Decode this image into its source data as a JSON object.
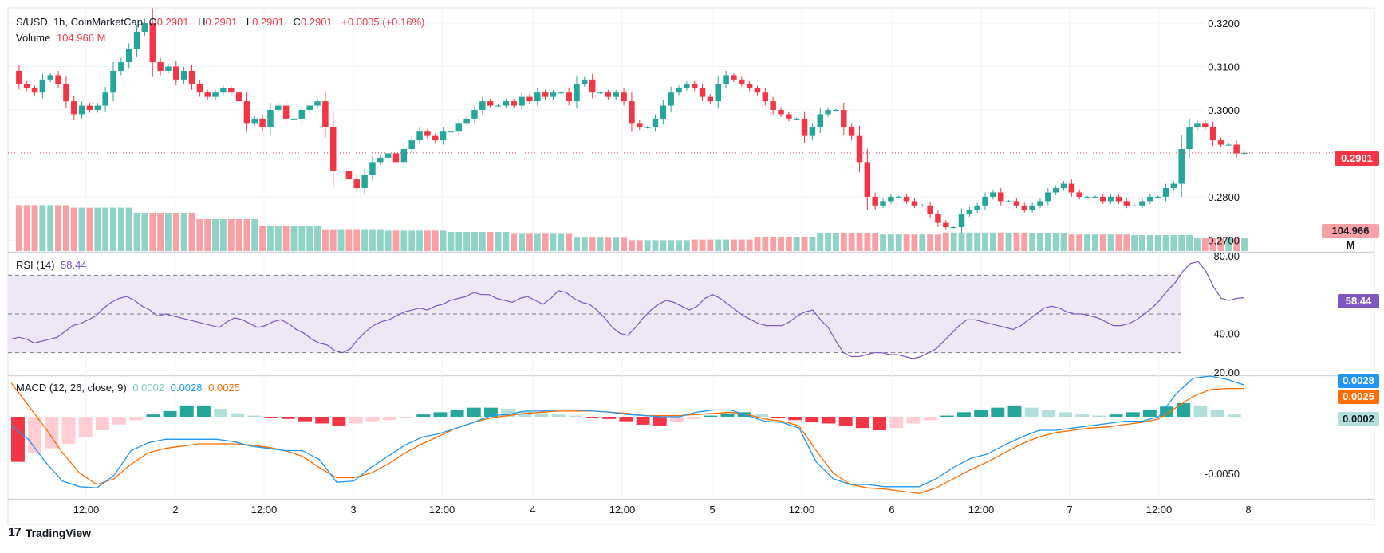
{
  "header": {
    "symbol": "S/USD, 1h, CoinMarketCap",
    "o_label": "O",
    "o_value": "0.2901",
    "h_label": "H",
    "h_value": "0.2901",
    "l_label": "L",
    "l_value": "0.2901",
    "c_label": "C",
    "c_value": "0.2901",
    "change": "+0.0005 (+0.16%)",
    "volume_label": "Volume",
    "volume_value": "104.966 M"
  },
  "rsi_legend": {
    "label": "RSI (14)",
    "value": "58.44"
  },
  "macd_legend": {
    "label": "MACD (12, 26, close, 9)",
    "hist": "0.0002",
    "macd": "0.0028",
    "signal": "0.0025"
  },
  "badges": {
    "price": "0.2901",
    "volume": "104.966 M",
    "rsi": "58.44",
    "macd": "0.0028",
    "signal": "0.0025",
    "hist": "0.0002"
  },
  "branding": {
    "logo_text": "TradingView",
    "logo_mark": "17"
  },
  "colors": {
    "up": "#26a69a",
    "down": "#f23645",
    "up_vol": "#8fd3c7",
    "down_vol": "#f7a1a6",
    "rsi_line": "#7e57c2",
    "rsi_band": "#ede7f6",
    "macd_line": "#2196f3",
    "signal_line": "#ff6d00",
    "hist_pos_strong": "#26a69a",
    "hist_pos_weak": "#b2dfdb",
    "hist_neg_strong": "#f23645",
    "hist_neg_weak": "#ffcdd2"
  },
  "chart_data": [
    {
      "type": "candlestick",
      "title": "S/USD, 1h, CoinMarketCap",
      "x_tick_labels": [
        "12:00",
        "2",
        "12:00",
        "3",
        "12:00",
        "4",
        "12:00",
        "5",
        "12:00",
        "6",
        "12:00",
        "7",
        "12:00",
        "8"
      ],
      "y_tick_labels": [
        "0.3200",
        "0.3100",
        "0.3000",
        "0.2800",
        "0.2700"
      ],
      "ylim": [
        0.2675,
        0.3235
      ],
      "close_path": [
        0.309,
        0.306,
        0.305,
        0.304,
        0.307,
        0.308,
        0.306,
        0.302,
        0.299,
        0.301,
        0.3,
        0.301,
        0.304,
        0.309,
        0.311,
        0.314,
        0.318,
        0.32,
        0.311,
        0.309,
        0.31,
        0.307,
        0.309,
        0.306,
        0.304,
        0.303,
        0.304,
        0.305,
        0.304,
        0.302,
        0.297,
        0.298,
        0.296,
        0.3,
        0.301,
        0.298,
        0.298,
        0.3,
        0.301,
        0.302,
        0.296,
        0.286,
        0.286,
        0.284,
        0.282,
        0.285,
        0.288,
        0.289,
        0.29,
        0.288,
        0.291,
        0.293,
        0.295,
        0.294,
        0.293,
        0.295,
        0.295,
        0.297,
        0.298,
        0.3,
        0.302,
        0.301,
        0.301,
        0.302,
        0.301,
        0.303,
        0.302,
        0.304,
        0.303,
        0.304,
        0.304,
        0.302,
        0.306,
        0.307,
        0.304,
        0.304,
        0.303,
        0.304,
        0.302,
        0.297,
        0.296,
        0.296,
        0.298,
        0.301,
        0.304,
        0.305,
        0.306,
        0.305,
        0.303,
        0.302,
        0.306,
        0.308,
        0.307,
        0.306,
        0.305,
        0.304,
        0.302,
        0.3,
        0.299,
        0.298,
        0.298,
        0.294,
        0.296,
        0.299,
        0.3,
        0.3,
        0.296,
        0.294,
        0.288,
        0.28,
        0.278,
        0.279,
        0.28,
        0.28,
        0.279,
        0.278,
        0.278,
        0.276,
        0.274,
        0.273,
        0.273,
        0.276,
        0.277,
        0.278,
        0.28,
        0.281,
        0.279,
        0.279,
        0.278,
        0.277,
        0.278,
        0.279,
        0.281,
        0.282,
        0.283,
        0.281,
        0.28,
        0.28,
        0.28,
        0.279,
        0.28,
        0.279,
        0.278,
        0.278,
        0.279,
        0.28,
        0.28,
        0.282,
        0.283,
        0.291,
        0.296,
        0.297,
        0.296,
        0.293,
        0.292,
        0.292,
        0.29,
        0.2901
      ]
    },
    {
      "type": "bar",
      "title": "Volume",
      "value_label": "104.966 M",
      "volume_profile": [
        0.72,
        0.68,
        0.6,
        0.5,
        0.4,
        0.33,
        0.32,
        0.3,
        0.27,
        0.21,
        0.17,
        0.18,
        0.22,
        0.28,
        0.26,
        0.29,
        0.28,
        0.26,
        0.25,
        0.2
      ]
    },
    {
      "type": "line",
      "title": "RSI (14)",
      "value_label": "58.44",
      "y_tick_labels": [
        "80.00",
        "40.00",
        "20.00"
      ],
      "ylim": [
        20,
        80
      ],
      "bands": [
        70,
        50,
        30
      ],
      "values": [
        37,
        38,
        37,
        35,
        36,
        37,
        38,
        41,
        44,
        45,
        47,
        49,
        53,
        56,
        58,
        59,
        57,
        54,
        52,
        49,
        50,
        49,
        48,
        47,
        46,
        45,
        44,
        43,
        46,
        48,
        47,
        45,
        43,
        44,
        46,
        47,
        45,
        42,
        40,
        37,
        35,
        34,
        31,
        30,
        32,
        37,
        41,
        44,
        46,
        47,
        49,
        51,
        52,
        53,
        52,
        54,
        55,
        57,
        58,
        59,
        61,
        60,
        60,
        58,
        57,
        56,
        58,
        59,
        57,
        55,
        58,
        62,
        61,
        58,
        56,
        55,
        52,
        48,
        43,
        40,
        39,
        43,
        48,
        52,
        55,
        57,
        56,
        54,
        52,
        54,
        58,
        60,
        58,
        55,
        52,
        49,
        47,
        45,
        44,
        44,
        44,
        46,
        49,
        51,
        52,
        47,
        43,
        36,
        30,
        28,
        28,
        29,
        30,
        30,
        29,
        29,
        28,
        27,
        28,
        30,
        32,
        36,
        40,
        44,
        47,
        47,
        46,
        45,
        44,
        43,
        42,
        44,
        47,
        50,
        53,
        54,
        53,
        51,
        50,
        50,
        49,
        48,
        46,
        44,
        44,
        45,
        47,
        50,
        53,
        57,
        62,
        66,
        72,
        76,
        77,
        72,
        64,
        58,
        57,
        58,
        58.44
      ]
    },
    {
      "type": "line",
      "title": "MACD (12, 26, close, 9)",
      "y_tick_labels": [
        "0.0028",
        "0.0025",
        "0.0002",
        "-0.0050"
      ],
      "ylim": [
        -0.0072,
        0.0036
      ],
      "series": [
        {
          "name": "MACD",
          "key": "macd",
          "value_label": "0.0028"
        },
        {
          "name": "Signal",
          "key": "signal",
          "value_label": "0.0025"
        },
        {
          "name": "Histogram",
          "key": "hist",
          "value_label": "0.0002"
        }
      ],
      "macd_values": [
        -0.0008,
        -0.002,
        -0.004,
        -0.0057,
        -0.0062,
        -0.0063,
        -0.0052,
        -0.003,
        -0.0023,
        -0.002,
        -0.002,
        -0.002,
        -0.002,
        -0.0022,
        -0.0026,
        -0.0028,
        -0.003,
        -0.003,
        -0.0038,
        -0.0058,
        -0.0057,
        -0.0045,
        -0.0035,
        -0.0025,
        -0.0018,
        -0.0015,
        -0.001,
        -0.0005,
        0.0001,
        0.0002,
        0.0005,
        0.0005,
        0.0006,
        0.0006,
        0.0005,
        0.0004,
        0.0002,
        0.0001,
        0.0,
        0.0,
        0.0004,
        0.0006,
        0.0006,
        0.0001,
        -0.0004,
        -0.0005,
        -0.001,
        -0.004,
        -0.0055,
        -0.006,
        -0.006,
        -0.0062,
        -0.0062,
        -0.0062,
        -0.0055,
        -0.0045,
        -0.0037,
        -0.0033,
        -0.0025,
        -0.0018,
        -0.0012,
        -0.0012,
        -0.001,
        -0.0008,
        -0.0006,
        -0.0004,
        -0.0004,
        0.0,
        0.002,
        0.0034,
        0.0036,
        0.0033,
        0.0028
      ],
      "signal_values": [
        0.003,
        0.001,
        -0.001,
        -0.0032,
        -0.005,
        -0.006,
        -0.0055,
        -0.0042,
        -0.0032,
        -0.0028,
        -0.0026,
        -0.0024,
        -0.0024,
        -0.0024,
        -0.0025,
        -0.0027,
        -0.003,
        -0.0035,
        -0.0045,
        -0.0054,
        -0.0054,
        -0.005,
        -0.0042,
        -0.0032,
        -0.0024,
        -0.0017,
        -0.001,
        -0.0005,
        -0.0001,
        0.0001,
        0.0003,
        0.0004,
        0.0005,
        0.0005,
        0.0005,
        0.0004,
        0.0003,
        0.0001,
        0.0001,
        0.0001,
        0.0002,
        0.0003,
        0.0004,
        0.0002,
        -0.0002,
        -0.0004,
        -0.0008,
        -0.003,
        -0.005,
        -0.006,
        -0.0063,
        -0.0064,
        -0.0066,
        -0.0068,
        -0.0063,
        -0.0055,
        -0.0047,
        -0.004,
        -0.0032,
        -0.0024,
        -0.0018,
        -0.0014,
        -0.0012,
        -0.001,
        -0.0009,
        -0.0007,
        -0.0005,
        -0.0002,
        0.0008,
        0.0018,
        0.0024,
        0.0025,
        0.0025
      ],
      "hist_values": [
        -0.004,
        -0.0032,
        -0.0028,
        -0.0024,
        -0.0018,
        -0.0012,
        -0.0007,
        -0.0003,
        0.0002,
        0.0005,
        0.001,
        0.001,
        0.0007,
        0.0003,
        0.0001,
        -0.0001,
        -0.0002,
        -0.0004,
        -0.0006,
        -0.0008,
        -0.0006,
        -0.0004,
        -0.0003,
        -0.0001,
        0.0002,
        0.0004,
        0.0006,
        0.0008,
        0.0008,
        0.0007,
        0.0005,
        0.0003,
        0.0002,
        0.0001,
        -0.0001,
        -0.0002,
        -0.0004,
        -0.0007,
        -0.0008,
        -0.0005,
        -0.0002,
        0.0001,
        0.0003,
        0.0004,
        0.0002,
        -0.0001,
        -0.0003,
        -0.0005,
        -0.0006,
        -0.0008,
        -0.001,
        -0.0012,
        -0.001,
        -0.0006,
        -0.0003,
        0.0001,
        0.0004,
        0.0006,
        0.0008,
        0.001,
        0.0008,
        0.0006,
        0.0004,
        0.0002,
        0.0001,
        0.0002,
        0.0004,
        0.0006,
        0.0009,
        0.0012,
        0.001,
        0.0006,
        0.0002
      ]
    }
  ]
}
